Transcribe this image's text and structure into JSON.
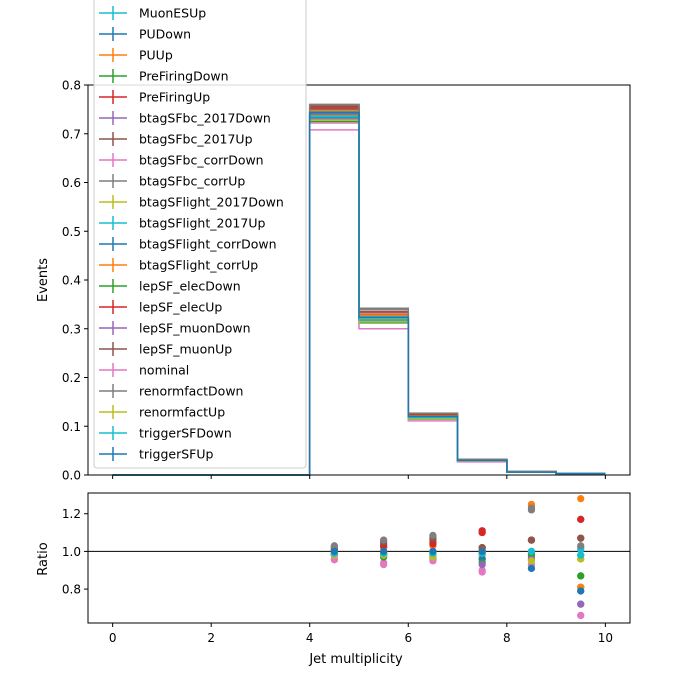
{
  "chart_data": [
    {
      "type": "line",
      "ylabel": "Events",
      "xlabel": "",
      "xlim": [
        -0.5,
        10.5
      ],
      "ylim": [
        0,
        0.8
      ],
      "xticks": [
        0,
        2,
        4,
        6,
        8,
        10
      ],
      "yticks": [
        0.0,
        0.1,
        0.2,
        0.3,
        0.4,
        0.5,
        0.6,
        0.7,
        0.8
      ],
      "ytick_labels": [
        "0.0",
        "0.1",
        "0.2",
        "0.3",
        "0.4",
        "0.5",
        "0.6",
        "0.7",
        "0.8"
      ],
      "bin_edges": [
        0,
        1,
        2,
        3,
        4,
        5,
        6,
        7,
        8,
        9,
        10
      ],
      "legend_position": "top-left",
      "series": [
        {
          "name": "MuonESUp",
          "color": "#17becf",
          "values": [
            0,
            0,
            0,
            0,
            0.748,
            0.327,
            0.121,
            0.03,
            0.006,
            0.003
          ]
        },
        {
          "name": "PUDown",
          "color": "#1f77b4",
          "values": [
            0,
            0,
            0,
            0,
            0.745,
            0.324,
            0.12,
            0.03,
            0.006,
            0.003
          ]
        },
        {
          "name": "PUUp",
          "color": "#ff7f0e",
          "values": [
            0,
            0,
            0,
            0,
            0.742,
            0.322,
            0.119,
            0.03,
            0.006,
            0.003
          ]
        },
        {
          "name": "PreFiringDown",
          "color": "#2ca02c",
          "values": [
            0,
            0,
            0,
            0,
            0.738,
            0.32,
            0.119,
            0.029,
            0.006,
            0.003
          ]
        },
        {
          "name": "PreFiringUp",
          "color": "#d62728",
          "values": [
            0,
            0,
            0,
            0,
            0.75,
            0.329,
            0.122,
            0.031,
            0.006,
            0.003
          ]
        },
        {
          "name": "btagSFbc_2017Down",
          "color": "#9467bd",
          "values": [
            0,
            0,
            0,
            0,
            0.74,
            0.322,
            0.119,
            0.029,
            0.006,
            0.003
          ]
        },
        {
          "name": "btagSFbc_2017Up",
          "color": "#8c564b",
          "values": [
            0,
            0,
            0,
            0,
            0.752,
            0.33,
            0.123,
            0.031,
            0.007,
            0.003
          ]
        },
        {
          "name": "btagSFbc_corrDown",
          "color": "#e377c2",
          "values": [
            0,
            0,
            0,
            0,
            0.722,
            0.314,
            0.116,
            0.029,
            0.006,
            0.003
          ]
        },
        {
          "name": "btagSFbc_corrUp",
          "color": "#7f7f7f",
          "values": [
            0,
            0,
            0,
            0,
            0.76,
            0.34,
            0.126,
            0.032,
            0.007,
            0.003
          ]
        },
        {
          "name": "btagSFlight_2017Down",
          "color": "#bcbd22",
          "values": [
            0,
            0,
            0,
            0,
            0.736,
            0.32,
            0.118,
            0.03,
            0.006,
            0.003
          ]
        },
        {
          "name": "btagSFlight_2017Up",
          "color": "#17becf",
          "values": [
            0,
            0,
            0,
            0,
            0.744,
            0.324,
            0.12,
            0.03,
            0.006,
            0.003
          ]
        },
        {
          "name": "btagSFlight_corrDown",
          "color": "#1f77b4",
          "values": [
            0,
            0,
            0,
            0,
            0.733,
            0.318,
            0.118,
            0.029,
            0.006,
            0.003
          ]
        },
        {
          "name": "btagSFlight_corrUp",
          "color": "#ff7f0e",
          "values": [
            0,
            0,
            0,
            0,
            0.748,
            0.328,
            0.122,
            0.031,
            0.007,
            0.003
          ]
        },
        {
          "name": "lepSF_elecDown",
          "color": "#2ca02c",
          "values": [
            0,
            0,
            0,
            0,
            0.725,
            0.312,
            0.115,
            0.028,
            0.006,
            0.003
          ]
        },
        {
          "name": "lepSF_elecUp",
          "color": "#d62728",
          "values": [
            0,
            0,
            0,
            0,
            0.755,
            0.334,
            0.124,
            0.032,
            0.007,
            0.003
          ]
        },
        {
          "name": "lepSF_muonDown",
          "color": "#9467bd",
          "values": [
            0,
            0,
            0,
            0,
            0.73,
            0.316,
            0.117,
            0.029,
            0.006,
            0.003
          ]
        },
        {
          "name": "lepSF_muonUp",
          "color": "#8c564b",
          "values": [
            0,
            0,
            0,
            0,
            0.757,
            0.336,
            0.125,
            0.031,
            0.007,
            0.003
          ]
        },
        {
          "name": "nominal",
          "color": "#e377c2",
          "values": [
            0,
            0,
            0,
            0,
            0.708,
            0.3,
            0.111,
            0.027,
            0.006,
            0.002
          ]
        },
        {
          "name": "renormfactDown",
          "color": "#7f7f7f",
          "values": [
            0,
            0,
            0,
            0,
            0.76,
            0.342,
            0.127,
            0.032,
            0.007,
            0.003
          ]
        },
        {
          "name": "renormfactUp",
          "color": "#bcbd22",
          "values": [
            0,
            0,
            0,
            0,
            0.728,
            0.314,
            0.116,
            0.029,
            0.006,
            0.003
          ]
        },
        {
          "name": "triggerSFDown",
          "color": "#17becf",
          "values": [
            0,
            0,
            0,
            0,
            0.735,
            0.318,
            0.118,
            0.03,
            0.006,
            0.003
          ]
        },
        {
          "name": "triggerSFUp",
          "color": "#1f77b4",
          "values": [
            0,
            0,
            0,
            0,
            0.743,
            0.323,
            0.12,
            0.03,
            0.006,
            0.003
          ]
        }
      ]
    },
    {
      "type": "scatter",
      "xlabel": "Jet multiplicity",
      "ylabel": "Ratio",
      "xlim": [
        -0.5,
        10.5
      ],
      "ylim": [
        0.62,
        1.31
      ],
      "xticks": [
        0,
        2,
        4,
        6,
        8,
        10
      ],
      "yticks": [
        0.8,
        1.0,
        1.2
      ],
      "ytick_labels": [
        "0.8",
        "1.0",
        "1.2"
      ],
      "reference_line": 1.0,
      "x": [
        4.5,
        5.5,
        6.5,
        7.5,
        8.5,
        9.5
      ],
      "series": [
        {
          "name": "MuonESUp",
          "color": "#17becf",
          "values": [
            1.0,
            0.99,
            0.98,
            0.99,
            0.99,
            0.98
          ]
        },
        {
          "name": "PUDown",
          "color": "#1f77b4",
          "values": [
            1.0,
            1.0,
            1.0,
            1.0,
            0.99,
            0.79
          ]
        },
        {
          "name": "PUUp",
          "color": "#ff7f0e",
          "values": [
            1.01,
            1.02,
            1.04,
            1.1,
            1.24,
            1.28
          ]
        },
        {
          "name": "PreFiringDown",
          "color": "#2ca02c",
          "values": [
            0.99,
            0.99,
            0.99,
            0.98,
            0.98,
            0.87
          ]
        },
        {
          "name": "PreFiringUp",
          "color": "#d62728",
          "values": [
            1.01,
            1.02,
            1.05,
            1.11,
            1.06,
            1.17
          ]
        },
        {
          "name": "btagSFbc_2017Down",
          "color": "#9467bd",
          "values": [
            0.99,
            0.98,
            0.97,
            0.96,
            0.96,
            0.72
          ]
        },
        {
          "name": "btagSFbc_2017Up",
          "color": "#8c564b",
          "values": [
            1.01,
            1.04,
            1.06,
            1.02,
            1.06,
            1.07
          ]
        },
        {
          "name": "btagSFbc_corrDown",
          "color": "#e377c2",
          "values": [
            0.96,
            0.94,
            0.95,
            0.9,
            0.93,
            0.66
          ]
        },
        {
          "name": "btagSFbc_corrUp",
          "color": "#7f7f7f",
          "values": [
            1.03,
            1.06,
            1.08,
            1.01,
            1.22,
            1.02
          ]
        },
        {
          "name": "btagSFlight_2017Down",
          "color": "#bcbd22",
          "values": [
            0.99,
            0.99,
            0.98,
            0.98,
            0.95,
            0.96
          ]
        },
        {
          "name": "btagSFlight_2017Up",
          "color": "#17becf",
          "values": [
            1.0,
            1.0,
            1.0,
            1.0,
            1.0,
            1.01
          ]
        },
        {
          "name": "btagSFlight_corrDown",
          "color": "#1f77b4",
          "values": [
            0.98,
            0.97,
            0.97,
            0.96,
            0.91,
            0.81
          ]
        },
        {
          "name": "btagSFlight_corrUp",
          "color": "#ff7f0e",
          "values": [
            1.0,
            1.02,
            1.03,
            1.02,
            1.25,
            0.81
          ]
        },
        {
          "name": "lepSF_elecDown",
          "color": "#2ca02c",
          "values": [
            0.98,
            0.97,
            0.96,
            0.94,
            0.97,
            0.87
          ]
        },
        {
          "name": "lepSF_elecUp",
          "color": "#d62728",
          "values": [
            1.02,
            1.03,
            1.04,
            1.1,
            1.06,
            1.17
          ]
        },
        {
          "name": "lepSF_muonDown",
          "color": "#9467bd",
          "values": [
            0.98,
            0.98,
            0.97,
            0.93,
            0.96,
            0.72
          ]
        },
        {
          "name": "lepSF_muonUp",
          "color": "#8c564b",
          "values": [
            1.02,
            1.05,
            1.07,
            1.02,
            1.06,
            1.07
          ]
        },
        {
          "name": "nominal",
          "color": "#e377c2",
          "values": [
            0.955,
            0.93,
            0.95,
            0.89,
            0.93,
            0.66
          ]
        },
        {
          "name": "renormfactDown",
          "color": "#7f7f7f",
          "values": [
            1.025,
            1.06,
            1.085,
            1.0,
            1.23,
            1.03
          ]
        },
        {
          "name": "renormfactUp",
          "color": "#bcbd22",
          "values": [
            0.98,
            0.98,
            0.97,
            1.0,
            0.95,
            0.96
          ]
        },
        {
          "name": "triggerSFDown",
          "color": "#17becf",
          "values": [
            0.99,
            0.99,
            0.99,
            0.99,
            1.0,
            0.98
          ]
        },
        {
          "name": "triggerSFUp",
          "color": "#1f77b4",
          "values": [
            1.0,
            1.0,
            1.0,
            1.0,
            0.91,
            0.79
          ]
        }
      ]
    }
  ]
}
